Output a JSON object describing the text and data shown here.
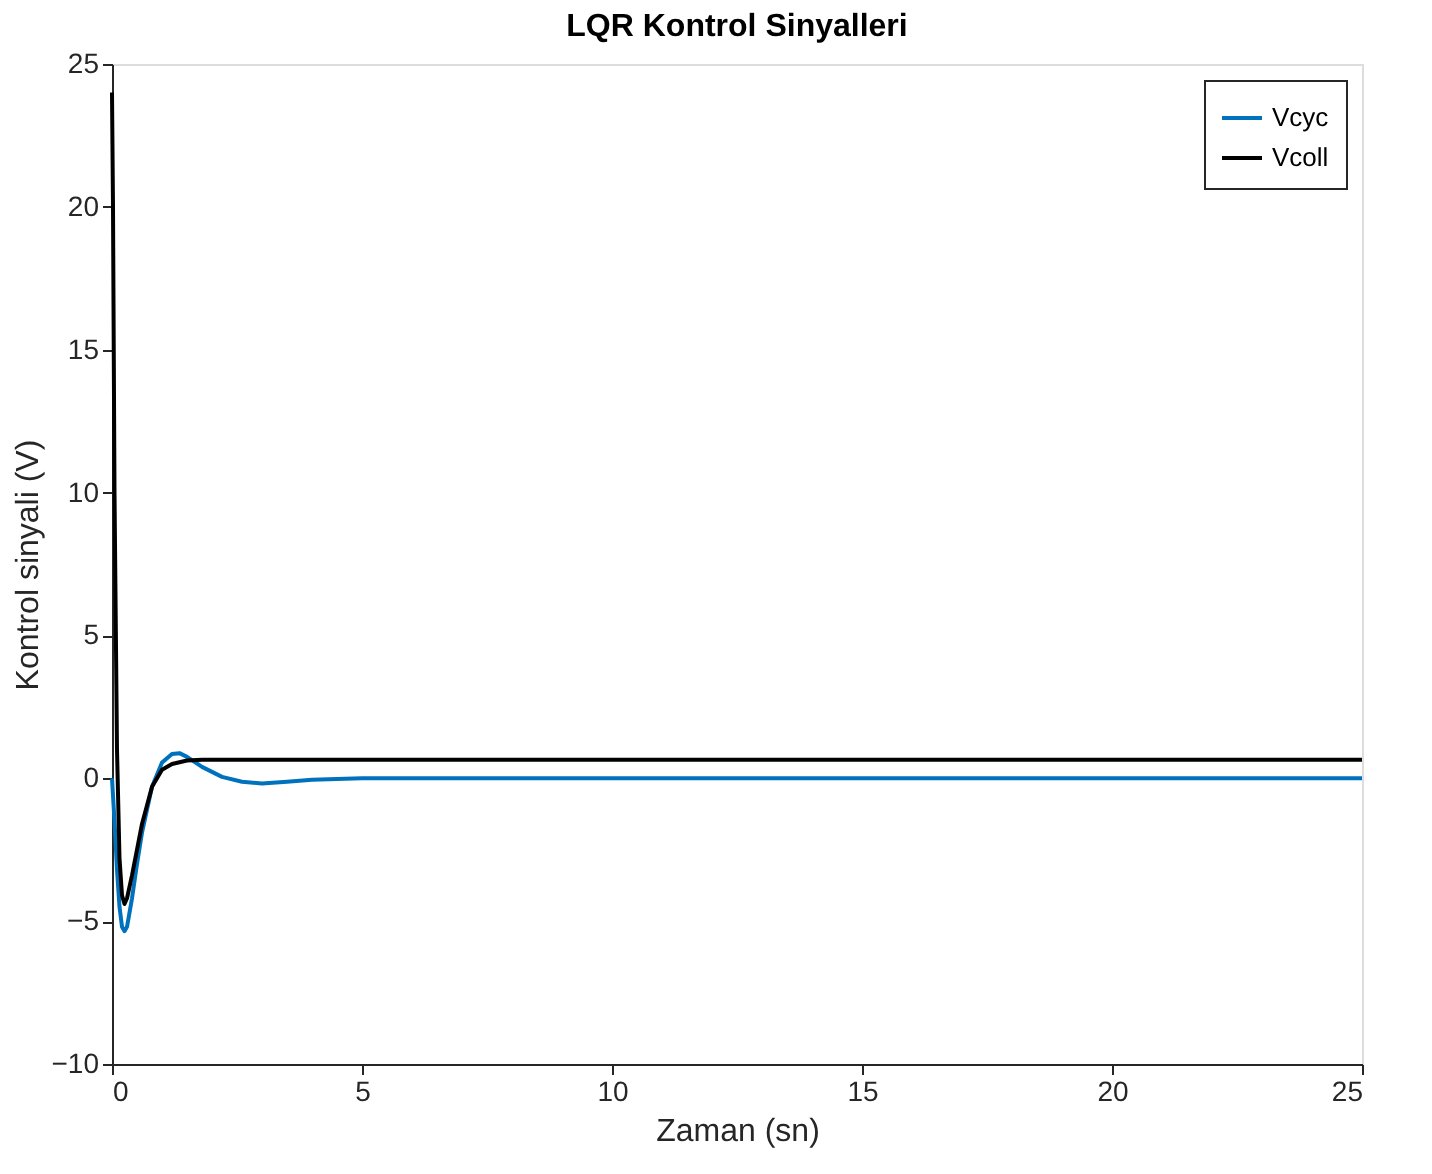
{
  "chart_data": {
    "type": "line",
    "title": "LQR Kontrol Sinyalleri",
    "xlabel": "Zaman (sn)",
    "ylabel": "Kontrol sinyali (V)",
    "xlim": [
      0,
      25
    ],
    "xticks": [
      0,
      5,
      10,
      15,
      20,
      25
    ],
    "ylim": [
      -10,
      25
    ],
    "yticks": [
      -10,
      -5,
      0,
      5,
      10,
      15,
      20,
      25
    ],
    "grid": false,
    "legend": "top right",
    "line_style": "solid",
    "marker": "none",
    "series": [
      {
        "name": "Vcyc",
        "color": "#0072bd",
        "x": [
          0,
          0.05,
          0.1,
          0.15,
          0.2,
          0.25,
          0.3,
          0.4,
          0.5,
          0.6,
          0.8,
          1.0,
          1.2,
          1.35,
          1.5,
          1.8,
          2.2,
          2.6,
          3.0,
          3.5,
          4.0,
          5.0,
          7.0,
          10,
          15,
          20,
          25
        ],
        "values": [
          0,
          -1.5,
          -3.2,
          -4.5,
          -5.2,
          -5.35,
          -5.2,
          -4.2,
          -3.0,
          -1.9,
          -0.3,
          0.55,
          0.85,
          0.88,
          0.75,
          0.4,
          0.05,
          -0.12,
          -0.18,
          -0.12,
          -0.05,
          0,
          0,
          0,
          0,
          0,
          0
        ]
      },
      {
        "name": "Vcoll",
        "color": "#000000",
        "x": [
          0,
          0.02,
          0.05,
          0.1,
          0.15,
          0.2,
          0.25,
          0.3,
          0.4,
          0.5,
          0.6,
          0.8,
          1.0,
          1.2,
          1.5,
          1.8,
          2.2,
          3,
          5,
          10,
          15,
          20,
          25
        ],
        "values": [
          24,
          20,
          10,
          1,
          -2.8,
          -4.1,
          -4.4,
          -4.2,
          -3.4,
          -2.5,
          -1.6,
          -0.3,
          0.3,
          0.5,
          0.62,
          0.65,
          0.65,
          0.65,
          0.65,
          0.65,
          0.65,
          0.65,
          0.65
        ]
      }
    ]
  }
}
